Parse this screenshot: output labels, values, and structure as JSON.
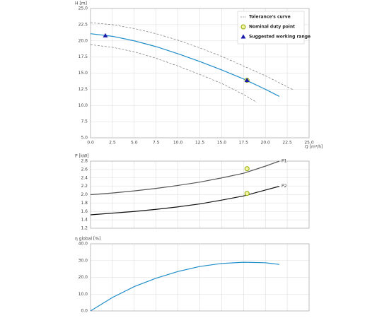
{
  "chart_data": [
    {
      "type": "line",
      "ylabel": "H [m]",
      "xlabel": "Q [m³/h]",
      "xlim": [
        0,
        25
      ],
      "ylim": [
        5,
        25
      ],
      "xticks": [
        {
          "value": 0,
          "label": "0.0"
        },
        2.5,
        {
          "value": 5,
          "label": "5.0"
        },
        7.5,
        {
          "value": 10,
          "label": "10.0"
        },
        12.5,
        {
          "value": 15,
          "label": "15.0"
        },
        17.5,
        {
          "value": 20,
          "label": "20.0"
        },
        22.5,
        {
          "value": 25,
          "label": "25.0"
        }
      ],
      "yticks": [
        {
          "value": 5,
          "label": "5.0"
        },
        7.5,
        {
          "value": 10,
          "label": "10.0"
        },
        12.5,
        {
          "value": 15,
          "label": "15.0"
        },
        17.5,
        {
          "value": 20,
          "label": "20.0"
        },
        22.5,
        {
          "value": 25,
          "label": "25.0"
        }
      ],
      "grid": true,
      "show_xtick_labels": true,
      "series": [
        {
          "color": "#1f8dc9",
          "x": [
            0,
            2.5,
            5,
            7.5,
            10,
            12.5,
            15,
            17.5,
            20,
            21.6
          ],
          "values": [
            21.1,
            20.7,
            20.0,
            19.1,
            18.0,
            16.8,
            15.5,
            14.1,
            12.5,
            11.4
          ]
        },
        {
          "name": "Tolerance's curve",
          "color": "#777777",
          "dash": true,
          "x": [
            0,
            2.5,
            5,
            7.5,
            10,
            12.5,
            15,
            17.5,
            20,
            23.2
          ],
          "values": [
            22.8,
            22.5,
            21.9,
            21.1,
            20.1,
            18.9,
            17.6,
            16.1,
            14.6,
            12.4
          ]
        },
        {
          "color": "#777777",
          "dash": true,
          "x": [
            0,
            2.5,
            5,
            7.5,
            10,
            12.5,
            15,
            17.5,
            19.0
          ],
          "values": [
            19.4,
            19.0,
            18.3,
            17.3,
            16.1,
            14.8,
            13.4,
            11.7,
            10.5
          ]
        }
      ],
      "markers": [
        {
          "name": "Nominal duty point",
          "shape": "circle",
          "color": "#8aa800",
          "x": [
            17.9
          ],
          "y": [
            13.9
          ]
        },
        {
          "name": "Suggested working range",
          "shape": "triangle",
          "color": "#1a1aa8",
          "x": [
            1.7,
            17.9
          ],
          "y": [
            20.8,
            13.9
          ]
        }
      ]
    },
    {
      "type": "line",
      "ylabel": "P [kW]",
      "xlim": [
        0,
        25
      ],
      "ylim": [
        1.2,
        2.8
      ],
      "xticks": [
        0,
        2.5,
        5,
        7.5,
        10,
        12.5,
        15,
        17.5,
        20,
        22.5,
        25
      ],
      "yticks": [
        1.2,
        1.4,
        1.6,
        1.8,
        {
          "value": 2,
          "label": "2.0"
        },
        2.2,
        2.4,
        2.6,
        2.8
      ],
      "grid": true,
      "show_xtick_labels": false,
      "series": [
        {
          "name": "P1",
          "color": "#555555",
          "x": [
            0,
            2.5,
            5,
            7.5,
            10,
            12.5,
            15,
            17.5,
            20,
            21.6
          ],
          "values": [
            2.0,
            2.04,
            2.09,
            2.15,
            2.22,
            2.3,
            2.4,
            2.51,
            2.68,
            2.8
          ]
        },
        {
          "name": "P2",
          "color": "#111111",
          "x": [
            0,
            2.5,
            5,
            7.5,
            10,
            12.5,
            15,
            17.5,
            20,
            21.6
          ],
          "values": [
            1.52,
            1.56,
            1.6,
            1.65,
            1.71,
            1.78,
            1.87,
            1.97,
            2.11,
            2.2
          ]
        }
      ],
      "markers": [
        {
          "shape": "circle",
          "color": "#8aa800",
          "x": [
            17.9
          ],
          "y": [
            2.62
          ]
        },
        {
          "shape": "circle",
          "color": "#8aa800",
          "x": [
            17.9
          ],
          "y": [
            2.03
          ]
        }
      ]
    },
    {
      "type": "line",
      "ylabel": "η global [%]",
      "xlim": [
        0,
        25
      ],
      "ylim": [
        0,
        40
      ],
      "xticks": [
        0,
        2.5,
        5,
        7.5,
        10,
        12.5,
        15,
        17.5,
        20,
        22.5,
        25
      ],
      "yticks": [
        {
          "value": 0,
          "label": "0.0"
        },
        {
          "value": 10,
          "label": "10.0"
        },
        {
          "value": 20,
          "label": "20.0"
        },
        {
          "value": 30,
          "label": "30.0"
        },
        {
          "value": 40,
          "label": "40.0"
        }
      ],
      "grid": true,
      "show_xtick_labels": false,
      "series": [
        {
          "color": "#1f8dc9",
          "x": [
            0,
            2.5,
            5,
            7.5,
            10,
            12.5,
            15,
            17.5,
            20,
            21.6
          ],
          "values": [
            0,
            8,
            14.5,
            19.5,
            23.5,
            26.5,
            28.3,
            29.0,
            28.7,
            27.7
          ]
        }
      ]
    }
  ]
}
